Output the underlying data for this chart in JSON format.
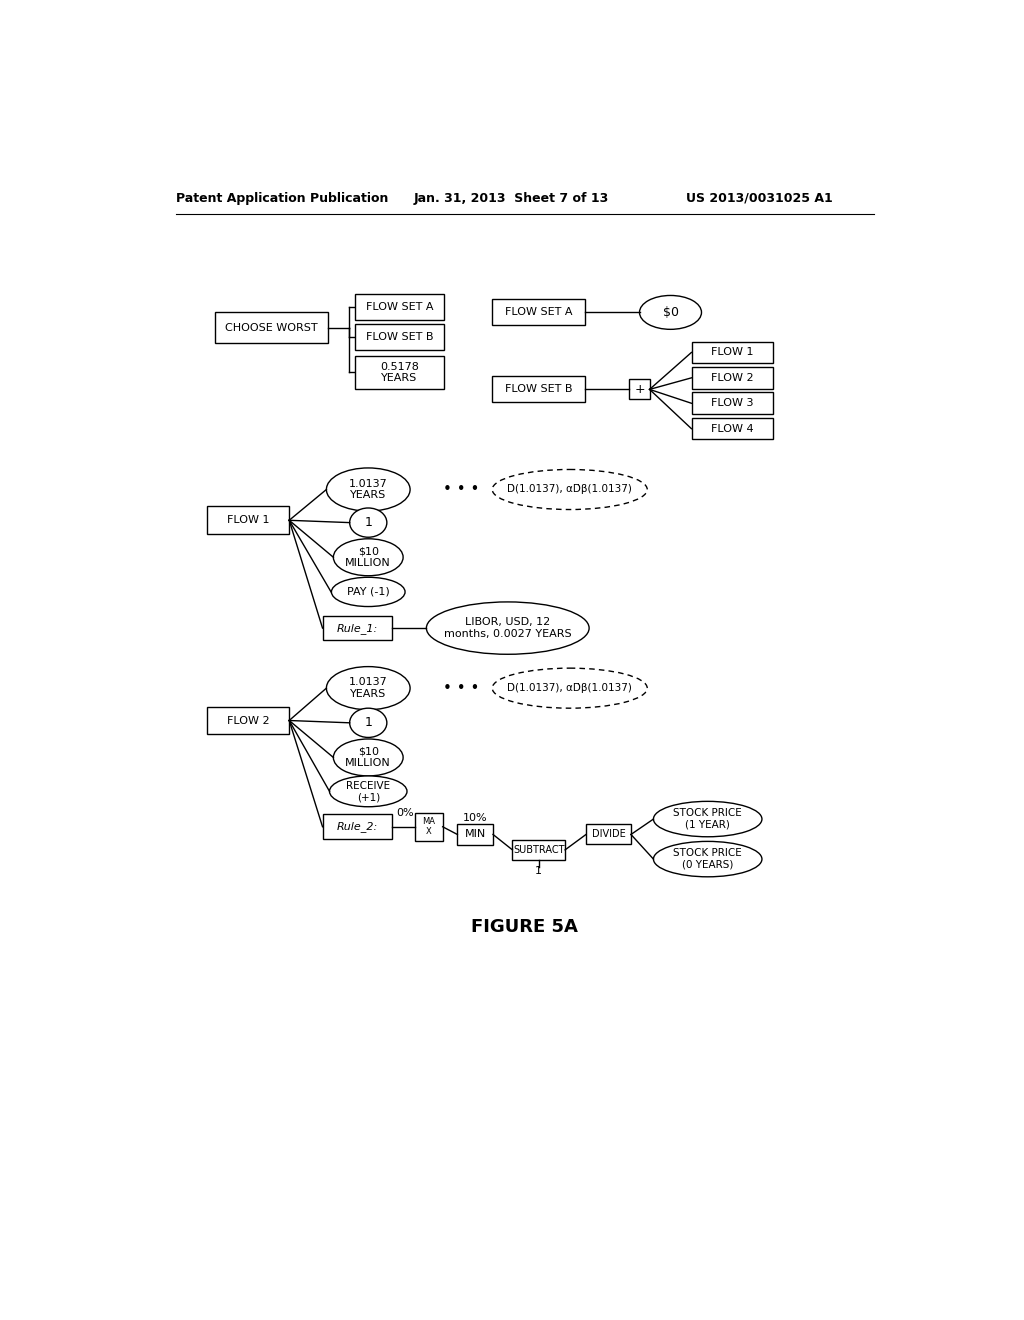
{
  "title_left": "Patent Application Publication",
  "title_mid": "Jan. 31, 2013  Sheet 7 of 13",
  "title_right": "US 2013/0031025 A1",
  "figure_label": "FIGURE 5A",
  "bg_color": "#ffffff"
}
